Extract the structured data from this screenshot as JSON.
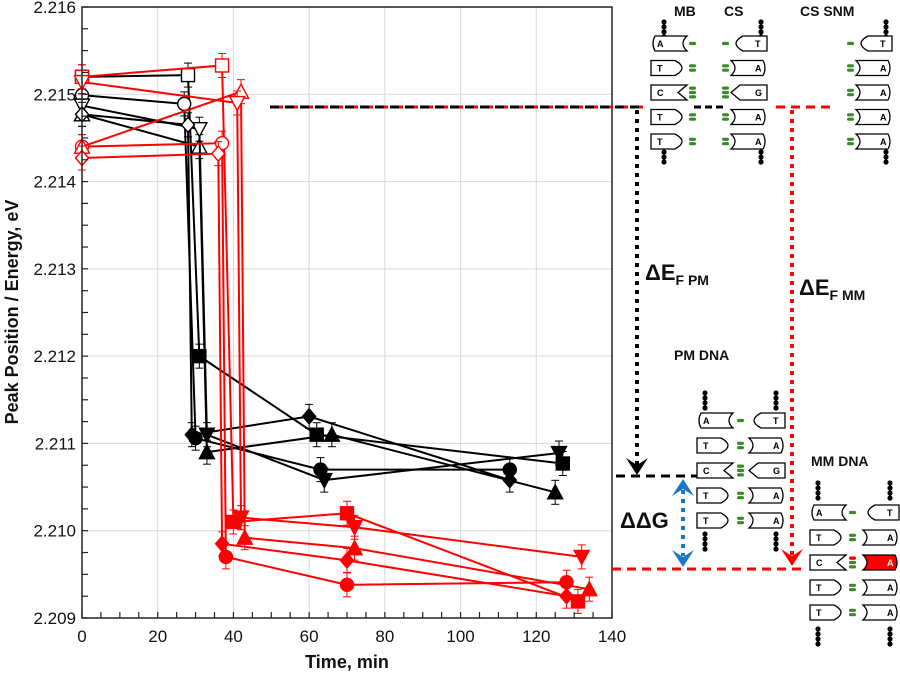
{
  "chart_data": {
    "type": "line",
    "title": "",
    "xlabel": "Time, min",
    "ylabel": "Peak Position / Energy, eV",
    "xlim": [
      0,
      140
    ],
    "ylim": [
      2.209,
      2.216
    ],
    "xticks": [
      "0",
      "20",
      "40",
      "60",
      "80",
      "100",
      "120",
      "140"
    ],
    "yticks": [
      "2.209",
      "2.210",
      "2.211",
      "2.212",
      "2.213",
      "2.214",
      "2.215",
      "2.216"
    ],
    "grid": true,
    "legend": "none",
    "series": [
      {
        "name": "black-square",
        "color": "#000000",
        "marker": "square",
        "points": [
          [
            0,
            2.2152
          ],
          [
            28,
            2.21522
          ],
          [
            31,
            2.212
          ],
          [
            62,
            2.2111
          ],
          [
            127,
            2.21077
          ]
        ],
        "open_points": 2
      },
      {
        "name": "black-circle",
        "color": "#000000",
        "marker": "circle",
        "points": [
          [
            0,
            2.21499
          ],
          [
            27,
            2.21489
          ],
          [
            30,
            2.21106
          ],
          [
            63,
            2.2107
          ],
          [
            113,
            2.2107
          ]
        ],
        "open_points": 2
      },
      {
        "name": "black-triangle-up",
        "color": "#000000",
        "marker": "triangle-up",
        "points": [
          [
            0,
            2.21477
          ],
          [
            31,
            2.2144
          ],
          [
            33,
            2.2109
          ],
          [
            66,
            2.2111
          ],
          [
            125,
            2.21044
          ]
        ],
        "open_points": 2
      },
      {
        "name": "black-triangle-down",
        "color": "#000000",
        "marker": "triangle-down",
        "points": [
          [
            0,
            2.21487
          ],
          [
            31,
            2.2146
          ],
          [
            33,
            2.2111
          ],
          [
            64,
            2.21058
          ],
          [
            126,
            2.21089
          ]
        ],
        "open_points": 2
      },
      {
        "name": "black-diamond",
        "color": "#000000",
        "marker": "diamond",
        "points": [
          [
            0,
            2.21477
          ],
          [
            28,
            2.21465
          ],
          [
            29,
            2.2111
          ],
          [
            60,
            2.21131
          ],
          [
            113,
            2.21058
          ]
        ],
        "open_points": 2
      },
      {
        "name": "red-square",
        "color": "#ff0000",
        "marker": "square",
        "points": [
          [
            0,
            2.2152
          ],
          [
            37,
            2.21533
          ],
          [
            40,
            2.2101
          ],
          [
            70,
            2.2102
          ],
          [
            131,
            2.20919
          ]
        ],
        "open_points": 2
      },
      {
        "name": "red-circle",
        "color": "#ff0000",
        "marker": "circle",
        "points": [
          [
            0,
            2.2144
          ],
          [
            37,
            2.21444
          ],
          [
            38,
            2.2097
          ],
          [
            70,
            2.20938
          ],
          [
            128,
            2.20941
          ]
        ],
        "open_points": 2
      },
      {
        "name": "red-triangle-up",
        "color": "#ff0000",
        "marker": "triangle-up",
        "points": [
          [
            0,
            2.2144
          ],
          [
            42,
            2.21503
          ],
          [
            43,
            2.20992
          ],
          [
            72,
            2.2098
          ],
          [
            134,
            2.20933
          ]
        ],
        "open_points": 2
      },
      {
        "name": "red-triangle-down",
        "color": "#ff0000",
        "marker": "triangle-down",
        "points": [
          [
            0,
            2.21514
          ],
          [
            41,
            2.2149
          ],
          [
            42,
            2.21015
          ],
          [
            72,
            2.21004
          ],
          [
            132,
            2.2097
          ]
        ],
        "open_points": 2
      },
      {
        "name": "red-diamond",
        "color": "#ff0000",
        "marker": "diamond",
        "points": [
          [
            0,
            2.21427
          ],
          [
            36,
            2.21432
          ],
          [
            37,
            2.20985
          ],
          [
            70,
            2.20966
          ],
          [
            128,
            2.20925
          ]
        ],
        "open_points": 2
      }
    ]
  },
  "diagram": {
    "labels": {
      "mb": "MB",
      "cs": "CS",
      "cs_snm": "CS SNM",
      "pm_dna": "PM DNA",
      "mm_dna": "MM DNA",
      "delta_ef_pm_main": "ΔE",
      "delta_ef_pm_sub": "F PM",
      "delta_ef_mm_main": "ΔE",
      "delta_ef_mm_sub": "F MM",
      "delta_delta_g": "ΔΔG"
    },
    "mb_bases": [
      "A",
      "T",
      "C",
      "T",
      "T"
    ],
    "cs_bases": [
      "T",
      "A",
      "G",
      "A",
      "A"
    ],
    "cs_snm_bases": [
      "T",
      "A",
      "A",
      "A",
      "A"
    ],
    "pm_left": [
      "A",
      "T",
      "C",
      "T",
      "T"
    ],
    "pm_right": [
      "T",
      "A",
      "G",
      "A",
      "A"
    ],
    "mm_left": [
      "A",
      "T",
      "C",
      "T",
      "T"
    ],
    "mm_right": [
      "T",
      "A",
      "A",
      "A",
      "A"
    ],
    "mismatch_index": 2,
    "colors": {
      "black": "#000000",
      "red": "#ff0000",
      "blue": "#1a78c2",
      "green": "#3a8a2a"
    }
  }
}
